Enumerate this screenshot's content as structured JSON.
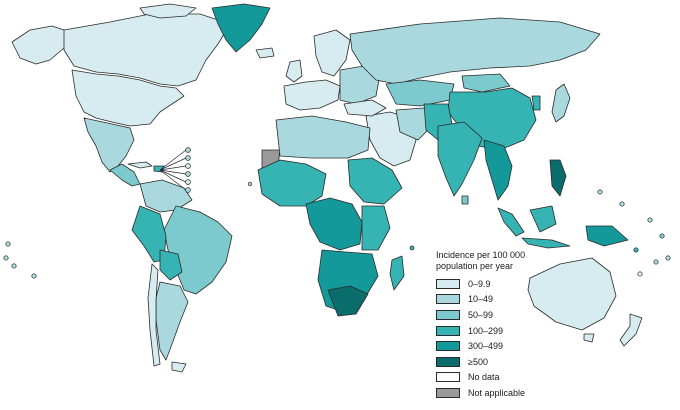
{
  "legend": {
    "title_line1": "Incidence per 100 000",
    "title_line2": "population per year",
    "items": [
      {
        "label": "0–9.9",
        "color": "#d6ecf0"
      },
      {
        "label": "10–49",
        "color": "#a9d9de"
      },
      {
        "label": "50–99",
        "color": "#7ccace"
      },
      {
        "label": "100–299",
        "color": "#36b3b3"
      },
      {
        "label": "300–499",
        "color": "#14999a"
      },
      {
        "label": "≥500",
        "color": "#0b6c6c"
      },
      {
        "label": "No data",
        "color": "#ffffff"
      },
      {
        "label": "Not applicable",
        "color": "#9a9a9a"
      }
    ]
  },
  "colors": {
    "c0": "#d6ecf0",
    "c1": "#a9d9de",
    "c2": "#7ccace",
    "c3": "#36b3b3",
    "c4": "#14999a",
    "c5": "#0b6c6c",
    "nodata": "#ffffff",
    "na": "#9a9a9a"
  }
}
